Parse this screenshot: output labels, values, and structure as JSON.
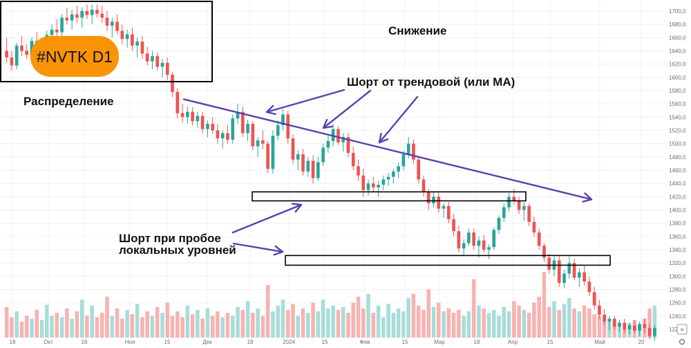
{
  "chart_data": {
    "type": "candlestick",
    "ticker_badge": "#NVTK D1",
    "ylim": [
      1200,
      1710
    ],
    "y_ticks": [
      1700,
      1680,
      1660,
      1640,
      1620,
      1600,
      1580,
      1560,
      1540,
      1520,
      1500,
      1480,
      1460,
      1440,
      1420,
      1400,
      1380,
      1360,
      1340,
      1320,
      1300,
      1280,
      1260,
      1240,
      1220
    ],
    "x_ticks": [
      "18",
      "Окт",
      "16",
      "Ноя",
      "15",
      "Дек",
      "18",
      "2024",
      "15",
      "Фев",
      "15",
      "Мар",
      "18",
      "Апр",
      "15",
      "Май",
      "20"
    ],
    "annotations": {
      "distribution": "Распределение",
      "decline": "Снижение",
      "short_trendline": "Шорт от трендовой (или МА)",
      "short_breakout_line1": "Шорт при пробое",
      "short_breakout_line2": "локальных уровней"
    },
    "trendline": {
      "start_price": 1567,
      "end_price": 1416
    },
    "levels": [
      1420,
      1324
    ],
    "colors": {
      "up": "#26a69a",
      "down": "#ef5350",
      "vol_up": "#a8ddd9",
      "vol_down": "#f7b3b1",
      "annotation": "#5b3fb0",
      "badge": "#f89406"
    },
    "candles": [
      [
        1640,
        1660,
        1622,
        1630
      ],
      [
        1630,
        1640,
        1610,
        1618
      ],
      [
        1618,
        1652,
        1612,
        1648
      ],
      [
        1648,
        1662,
        1632,
        1640
      ],
      [
        1640,
        1650,
        1628,
        1634
      ],
      [
        1634,
        1660,
        1628,
        1655
      ],
      [
        1655,
        1668,
        1640,
        1648
      ],
      [
        1648,
        1660,
        1630,
        1652
      ],
      [
        1652,
        1670,
        1645,
        1664
      ],
      [
        1664,
        1680,
        1655,
        1672
      ],
      [
        1672,
        1688,
        1660,
        1668
      ],
      [
        1668,
        1695,
        1662,
        1690
      ],
      [
        1690,
        1705,
        1680,
        1686
      ],
      [
        1686,
        1702,
        1672,
        1695
      ],
      [
        1695,
        1708,
        1682,
        1690
      ],
      [
        1690,
        1706,
        1675,
        1700
      ],
      [
        1700,
        1710,
        1688,
        1694
      ],
      [
        1694,
        1710,
        1680,
        1702
      ],
      [
        1702,
        1710,
        1690,
        1696
      ],
      [
        1696,
        1708,
        1682,
        1690
      ],
      [
        1690,
        1700,
        1670,
        1678
      ],
      [
        1678,
        1690,
        1660,
        1684
      ],
      [
        1684,
        1695,
        1665,
        1670
      ],
      [
        1670,
        1680,
        1650,
        1658
      ],
      [
        1658,
        1672,
        1645,
        1665
      ],
      [
        1665,
        1675,
        1640,
        1648
      ],
      [
        1648,
        1660,
        1630,
        1654
      ],
      [
        1654,
        1662,
        1628,
        1636
      ],
      [
        1636,
        1646,
        1618,
        1624
      ],
      [
        1624,
        1640,
        1612,
        1632
      ],
      [
        1632,
        1638,
        1610,
        1616
      ],
      [
        1616,
        1628,
        1600,
        1622
      ],
      [
        1622,
        1630,
        1596,
        1604
      ],
      [
        1604,
        1608,
        1570,
        1578
      ],
      [
        1578,
        1584,
        1538,
        1546
      ],
      [
        1546,
        1560,
        1532,
        1540
      ],
      [
        1540,
        1556,
        1530,
        1548
      ],
      [
        1548,
        1555,
        1528,
        1534
      ],
      [
        1534,
        1548,
        1524,
        1542
      ],
      [
        1542,
        1548,
        1516,
        1522
      ],
      [
        1522,
        1535,
        1510,
        1530
      ],
      [
        1530,
        1540,
        1515,
        1520
      ],
      [
        1520,
        1530,
        1500,
        1508
      ],
      [
        1508,
        1520,
        1492,
        1516
      ],
      [
        1516,
        1528,
        1500,
        1506
      ],
      [
        1506,
        1544,
        1500,
        1538
      ],
      [
        1538,
        1560,
        1530,
        1548
      ],
      [
        1548,
        1556,
        1510,
        1516
      ],
      [
        1516,
        1536,
        1504,
        1530
      ],
      [
        1530,
        1534,
        1490,
        1496
      ],
      [
        1496,
        1510,
        1480,
        1505
      ],
      [
        1505,
        1520,
        1492,
        1500
      ],
      [
        1500,
        1504,
        1456,
        1462
      ],
      [
        1462,
        1520,
        1455,
        1512
      ],
      [
        1512,
        1535,
        1505,
        1528
      ],
      [
        1528,
        1552,
        1520,
        1544
      ],
      [
        1544,
        1550,
        1500,
        1508
      ],
      [
        1508,
        1514,
        1470,
        1476
      ],
      [
        1476,
        1490,
        1460,
        1484
      ],
      [
        1484,
        1492,
        1452,
        1458
      ],
      [
        1458,
        1480,
        1450,
        1474
      ],
      [
        1474,
        1482,
        1440,
        1448
      ],
      [
        1448,
        1480,
        1444,
        1472
      ],
      [
        1472,
        1500,
        1466,
        1494
      ],
      [
        1494,
        1512,
        1486,
        1504
      ],
      [
        1504,
        1530,
        1496,
        1522
      ],
      [
        1522,
        1526,
        1498,
        1502
      ],
      [
        1502,
        1516,
        1488,
        1510
      ],
      [
        1510,
        1516,
        1480,
        1486
      ],
      [
        1486,
        1496,
        1460,
        1466
      ],
      [
        1466,
        1476,
        1444,
        1452
      ],
      [
        1452,
        1462,
        1420,
        1430
      ],
      [
        1430,
        1446,
        1422,
        1440
      ],
      [
        1440,
        1450,
        1428,
        1434
      ],
      [
        1434,
        1444,
        1420,
        1438
      ],
      [
        1438,
        1452,
        1430,
        1446
      ],
      [
        1446,
        1456,
        1436,
        1450
      ],
      [
        1450,
        1462,
        1440,
        1458
      ],
      [
        1458,
        1472,
        1448,
        1466
      ],
      [
        1466,
        1490,
        1460,
        1484
      ],
      [
        1484,
        1510,
        1478,
        1500
      ],
      [
        1500,
        1506,
        1470,
        1476
      ],
      [
        1476,
        1480,
        1440,
        1446
      ],
      [
        1446,
        1452,
        1420,
        1428
      ],
      [
        1428,
        1432,
        1400,
        1410
      ],
      [
        1410,
        1428,
        1404,
        1420
      ],
      [
        1420,
        1426,
        1396,
        1402
      ],
      [
        1402,
        1410,
        1388,
        1406
      ],
      [
        1406,
        1412,
        1380,
        1386
      ],
      [
        1386,
        1394,
        1360,
        1368
      ],
      [
        1368,
        1376,
        1336,
        1342
      ],
      [
        1342,
        1356,
        1330,
        1350
      ],
      [
        1350,
        1372,
        1346,
        1366
      ],
      [
        1366,
        1372,
        1340,
        1346
      ],
      [
        1346,
        1360,
        1328,
        1354
      ],
      [
        1354,
        1362,
        1336,
        1340
      ],
      [
        1340,
        1348,
        1326,
        1344
      ],
      [
        1344,
        1374,
        1340,
        1370
      ],
      [
        1370,
        1392,
        1364,
        1388
      ],
      [
        1388,
        1410,
        1382,
        1404
      ],
      [
        1404,
        1426,
        1398,
        1420
      ],
      [
        1420,
        1432,
        1408,
        1414
      ],
      [
        1414,
        1420,
        1394,
        1400
      ],
      [
        1400,
        1412,
        1384,
        1406
      ],
      [
        1406,
        1410,
        1376,
        1382
      ],
      [
        1382,
        1390,
        1360,
        1366
      ],
      [
        1366,
        1372,
        1340,
        1346
      ],
      [
        1346,
        1350,
        1322,
        1328
      ],
      [
        1328,
        1334,
        1304,
        1310
      ],
      [
        1310,
        1330,
        1300,
        1324
      ],
      [
        1324,
        1332,
        1284,
        1290
      ],
      [
        1290,
        1310,
        1282,
        1304
      ],
      [
        1304,
        1330,
        1296,
        1320
      ],
      [
        1320,
        1326,
        1294,
        1298
      ],
      [
        1298,
        1312,
        1284,
        1306
      ],
      [
        1306,
        1316,
        1286,
        1292
      ],
      [
        1292,
        1300,
        1270,
        1276
      ],
      [
        1276,
        1284,
        1250,
        1256
      ],
      [
        1256,
        1264,
        1236,
        1242
      ],
      [
        1242,
        1250,
        1226,
        1232
      ],
      [
        1232,
        1240,
        1218,
        1236
      ],
      [
        1236,
        1240,
        1220,
        1224
      ],
      [
        1224,
        1234,
        1216,
        1230
      ],
      [
        1230,
        1236,
        1214,
        1220
      ],
      [
        1220,
        1230,
        1212,
        1226
      ],
      [
        1226,
        1234,
        1214,
        1218
      ],
      [
        1218,
        1232,
        1210,
        1228
      ],
      [
        1228,
        1236,
        1214,
        1222
      ],
      [
        1222,
        1228,
        1205,
        1210
      ],
      [
        1210,
        1226,
        1202,
        1222
      ]
    ],
    "volumes": [
      42,
      28,
      36,
      22,
      30,
      26,
      38,
      24,
      45,
      30,
      34,
      28,
      40,
      26,
      36,
      52,
      30,
      44,
      28,
      34,
      56,
      30,
      40,
      26,
      38,
      32,
      46,
      28,
      36,
      30,
      42,
      34,
      48,
      30,
      36,
      28,
      44,
      32,
      38,
      26,
      40,
      30,
      36,
      28,
      34,
      30,
      42,
      38,
      50,
      34,
      40,
      30,
      72,
      36,
      44,
      52,
      38,
      46,
      30,
      40,
      34,
      48,
      36,
      52,
      40,
      44,
      38,
      42,
      34,
      48,
      56,
      40,
      60,
      34,
      44,
      28,
      46,
      34,
      40,
      36,
      54,
      60,
      44,
      38,
      66,
      42,
      48,
      36,
      40,
      34,
      38,
      30,
      36,
      80,
      44,
      40,
      34,
      38,
      30,
      42,
      36,
      50,
      44,
      38,
      34,
      48,
      56,
      90,
      42,
      50,
      38,
      46,
      54,
      40,
      36,
      44,
      40,
      32,
      30,
      24,
      26,
      22,
      20,
      18,
      20,
      24,
      16,
      26,
      40,
      44
    ]
  }
}
